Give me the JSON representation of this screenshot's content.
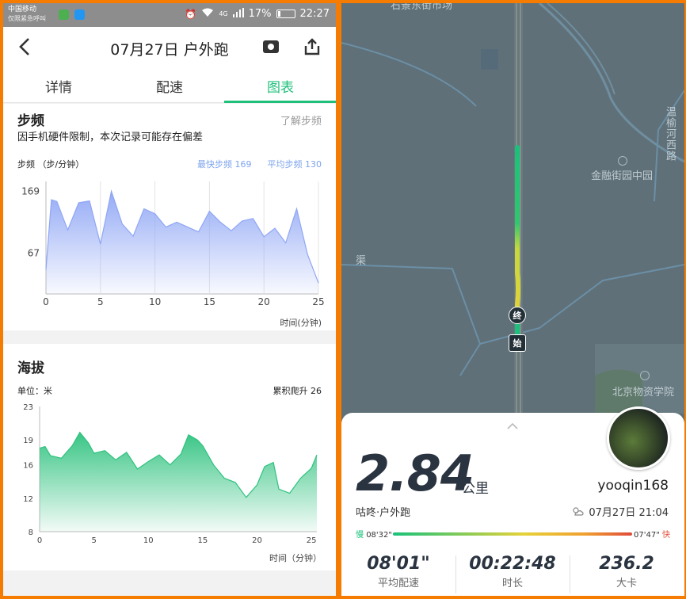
{
  "status_bar": {
    "carrier": "中国移动",
    "carrier_note": "仅限紧急呼叫",
    "network": "4G",
    "battery": "17%",
    "battery_level": 0.17,
    "time": "22:27"
  },
  "header": {
    "back_icon": "chevron-left-icon",
    "title": "07月27日 户外跑",
    "camera_icon": "camera-icon",
    "share_icon": "share-icon"
  },
  "tabs": [
    {
      "label": "详情",
      "active": false
    },
    {
      "label": "配速",
      "active": false
    },
    {
      "label": "图表",
      "active": true
    }
  ],
  "cadence": {
    "title": "步频",
    "learn_more": "了解步频",
    "warning": "因手机硬件限制，本次记录可能存在偏差",
    "unit_label": "步频 （步/分钟）",
    "max_label": "最快步频 169",
    "avg_label": "平均步频 130",
    "x_unit": "时间(分钟)",
    "color": "#8fa6f5",
    "chart_data": {
      "type": "area",
      "x": [
        0,
        0.5,
        1,
        2,
        3,
        4,
        5,
        6,
        7,
        8,
        9,
        10,
        11,
        12,
        13,
        14,
        15,
        16,
        17,
        18,
        19,
        20,
        21,
        22,
        23,
        24,
        25
      ],
      "y": [
        40,
        155,
        152,
        105,
        150,
        153,
        82,
        169,
        115,
        95,
        140,
        132,
        110,
        118,
        110,
        102,
        136,
        118,
        104,
        120,
        124,
        94,
        108,
        84,
        140,
        65,
        18
      ],
      "x_ticks": [
        0,
        5,
        10,
        15,
        20,
        25
      ],
      "y_ticks": [
        67,
        169
      ],
      "xlim": [
        0,
        25
      ],
      "ylim": [
        0,
        185
      ],
      "grid_x": true
    }
  },
  "altitude": {
    "title": "海拔",
    "unit_label": "单位：米",
    "climb_label": "累积爬升 26",
    "x_unit": "时间（分钟）",
    "color": "#2ec27e",
    "chart_data": {
      "type": "area",
      "x": [
        0,
        0.5,
        1,
        2,
        3,
        3.7,
        4.5,
        5,
        6,
        7,
        8,
        9,
        10,
        11,
        12,
        13,
        13.7,
        14.5,
        15,
        16,
        17,
        18,
        19,
        20,
        20.7,
        21.5,
        22,
        23,
        24,
        25,
        25.5
      ],
      "y": [
        18,
        18.2,
        17.1,
        16.8,
        18.3,
        19.9,
        18.6,
        17.4,
        17.7,
        16.6,
        17.5,
        15.5,
        16.4,
        17.2,
        16.0,
        17.3,
        19.6,
        19.0,
        18.3,
        16.0,
        14.4,
        13.9,
        12.1,
        13.6,
        15.8,
        16.3,
        13.1,
        12.6,
        14.4,
        15.6,
        17.2
      ],
      "x_ticks": [
        0,
        5,
        10,
        15,
        20,
        25
      ],
      "y_ticks": [
        8,
        12,
        16,
        19,
        23
      ],
      "xlim": [
        0,
        25.5
      ],
      "ylim": [
        8,
        23
      ],
      "grid_x": false
    }
  },
  "map": {
    "labels": {
      "market": "石景东街市场",
      "canal": "渠",
      "road": "温榆河西路",
      "park": "金融街园中园",
      "academy": "北京物资学院"
    },
    "start_marker": "始",
    "end_marker": "终"
  },
  "summary": {
    "distance": "2.84",
    "distance_unit": "公里",
    "username": "yooqin168",
    "source": "咕咚·户外跑",
    "weather_icon": "partly-cloudy-icon",
    "datetime": "07月27日 21:04",
    "pace_slow_label": "慢",
    "pace_slow_value": "08'32\"",
    "pace_fast_label": "快",
    "pace_fast_value": "07'47\"",
    "avg_pace": "08'01\"",
    "avg_pace_label": "平均配速",
    "duration": "00:22:48",
    "duration_label": "时长",
    "calories": "236.2",
    "calories_label": "大卡"
  }
}
